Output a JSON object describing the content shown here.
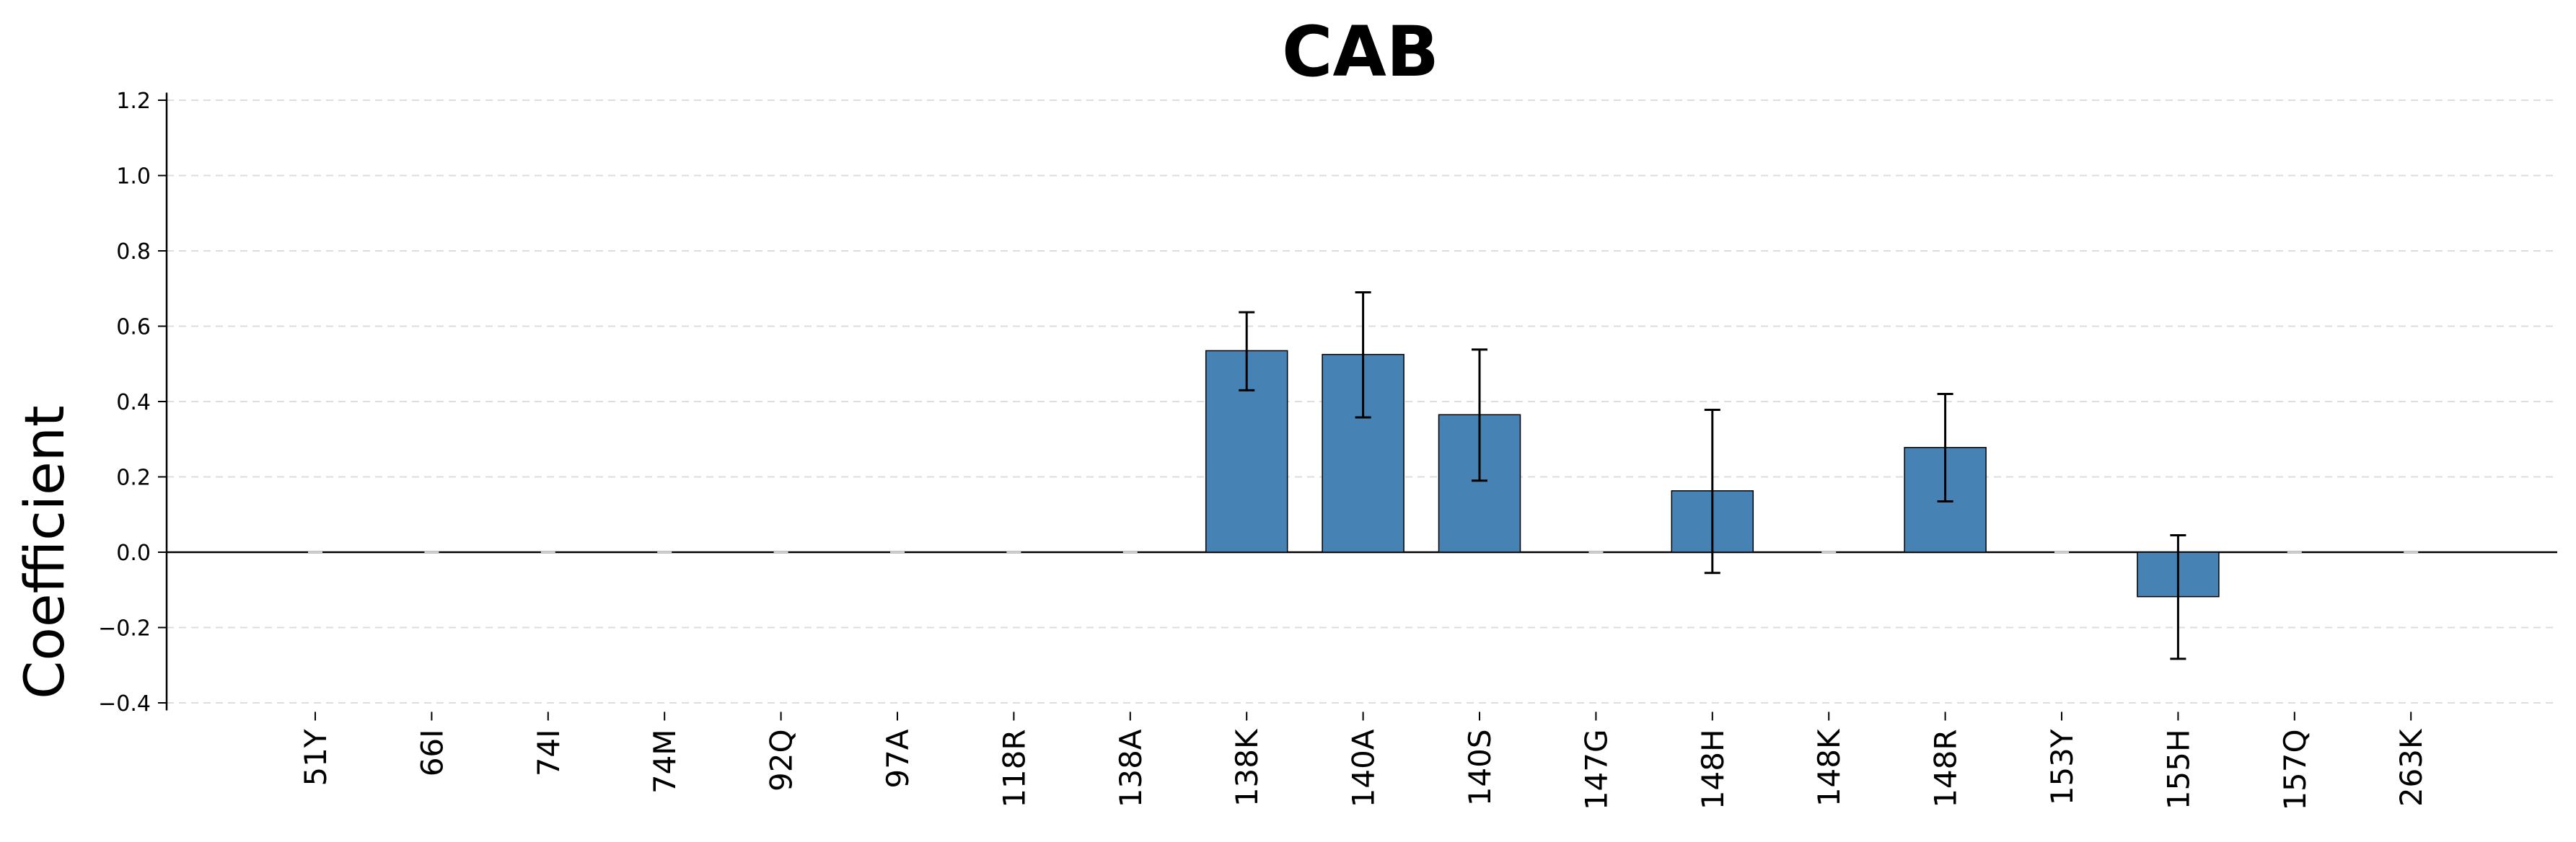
{
  "chart_data": {
    "type": "bar",
    "title": "CAB",
    "xlabel": "",
    "ylabel": "Coefficient",
    "ylim": [
      -0.42,
      1.22
    ],
    "yticks": [
      -0.4,
      -0.2,
      0.0,
      0.2,
      0.4,
      0.6,
      0.8,
      1.0,
      1.2
    ],
    "ytick_labels": [
      "−0.4",
      "−0.2",
      "0.0",
      "0.2",
      "0.4",
      "0.6",
      "0.8",
      "1.0",
      "1.2"
    ],
    "grid": "y-dashed",
    "categories": [
      "51Y",
      "66I",
      "74I",
      "74M",
      "92Q",
      "97A",
      "118R",
      "138A",
      "138K",
      "140A",
      "140S",
      "147G",
      "148H",
      "148K",
      "148R",
      "153Y",
      "155H",
      "157Q",
      "263K"
    ],
    "values": [
      0,
      0,
      0,
      0,
      0,
      0,
      0,
      0,
      0.535,
      0.525,
      0.365,
      0,
      0.163,
      0,
      0.278,
      0,
      -0.118,
      0,
      0
    ],
    "error_low": [
      null,
      null,
      null,
      null,
      null,
      null,
      null,
      null,
      0.43,
      0.358,
      0.19,
      null,
      -0.055,
      null,
      0.135,
      null,
      -0.283,
      null,
      null
    ],
    "error_high": [
      null,
      null,
      null,
      null,
      null,
      null,
      null,
      null,
      0.637,
      0.69,
      0.538,
      null,
      0.378,
      null,
      0.42,
      null,
      0.045,
      null,
      null
    ],
    "bar_color": "#4682b4",
    "edge_color": "#000000",
    "grid_color": "#dddddd"
  }
}
